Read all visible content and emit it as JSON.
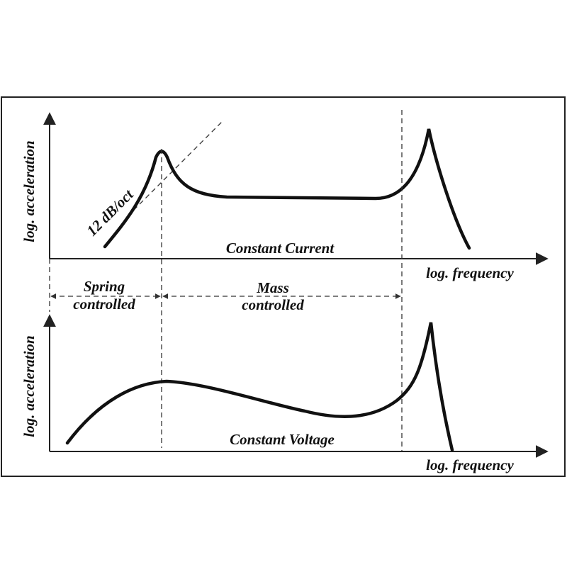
{
  "top_plot": {
    "y_label": "log. acceleration",
    "x_label": "log. frequency",
    "curve_label": "Constant Current",
    "slope_label": "12 dB/oct"
  },
  "regions": [
    {
      "label_lines": [
        "Spring",
        "controlled"
      ]
    },
    {
      "label_lines": [
        "Mass",
        "controlled"
      ]
    }
  ],
  "bottom_plot": {
    "y_label": "log. acceleration",
    "x_label": "log. frequency",
    "curve_label": "Constant Voltage"
  }
}
